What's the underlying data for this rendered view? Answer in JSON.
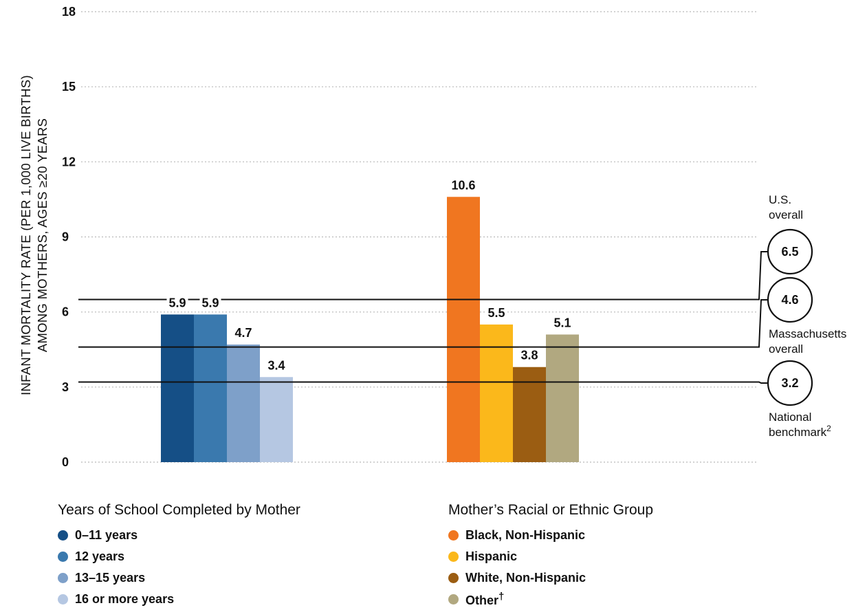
{
  "chart_data": {
    "type": "bar",
    "ylabel_line1": "INFANT MORTALITY RATE (PER 1,000 LIVE BIRTHS)",
    "ylabel_line2": "AMONG MOTHERS, AGES ≥20 YEARS",
    "ylim": [
      0,
      18
    ],
    "yticks": [
      "0",
      "3",
      "6",
      "9",
      "12",
      "15",
      "18"
    ],
    "grid": true,
    "groups": [
      {
        "title": "Years of School Completed by Mother",
        "bars": [
          {
            "label": "0–11 years",
            "value": 5.9,
            "value_label": "5.9",
            "color": "#154f86"
          },
          {
            "label": "12 years",
            "value": 5.9,
            "value_label": "5.9",
            "color": "#3a79ae"
          },
          {
            "label": "13–15 years",
            "value": 4.7,
            "value_label": "4.7",
            "color": "#7ea0c9"
          },
          {
            "label": "16 or more years",
            "value": 3.4,
            "value_label": "3.4",
            "color": "#b5c7e2"
          }
        ]
      },
      {
        "title": "Mother’s Racial or Ethnic Group",
        "bars": [
          {
            "label": "Black, Non-Hispanic",
            "value": 10.6,
            "value_label": "10.6",
            "color": "#f07620"
          },
          {
            "label": "Hispanic",
            "value": 5.5,
            "value_label": "5.5",
            "color": "#fbb81b"
          },
          {
            "label": "White, Non-Hispanic",
            "value": 3.8,
            "value_label": "3.8",
            "color": "#9b5d12"
          },
          {
            "label": "Other",
            "legend_suffix": "†",
            "value": 5.1,
            "value_label": "5.1",
            "color": "#b1a880"
          }
        ]
      }
    ],
    "reference_lines": [
      {
        "value": 6.5,
        "value_label": "6.5",
        "text_line1": "U.S.",
        "text_line2": "overall",
        "text_position": "above"
      },
      {
        "value": 4.6,
        "value_label": "4.6",
        "text_line1": "Massachusetts",
        "text_line2": "overall",
        "text_position": "below"
      },
      {
        "value": 3.2,
        "value_label": "3.2",
        "text_line1": "National",
        "text_line2": "benchmark",
        "text_superscript": "2",
        "text_position": "below"
      }
    ]
  }
}
